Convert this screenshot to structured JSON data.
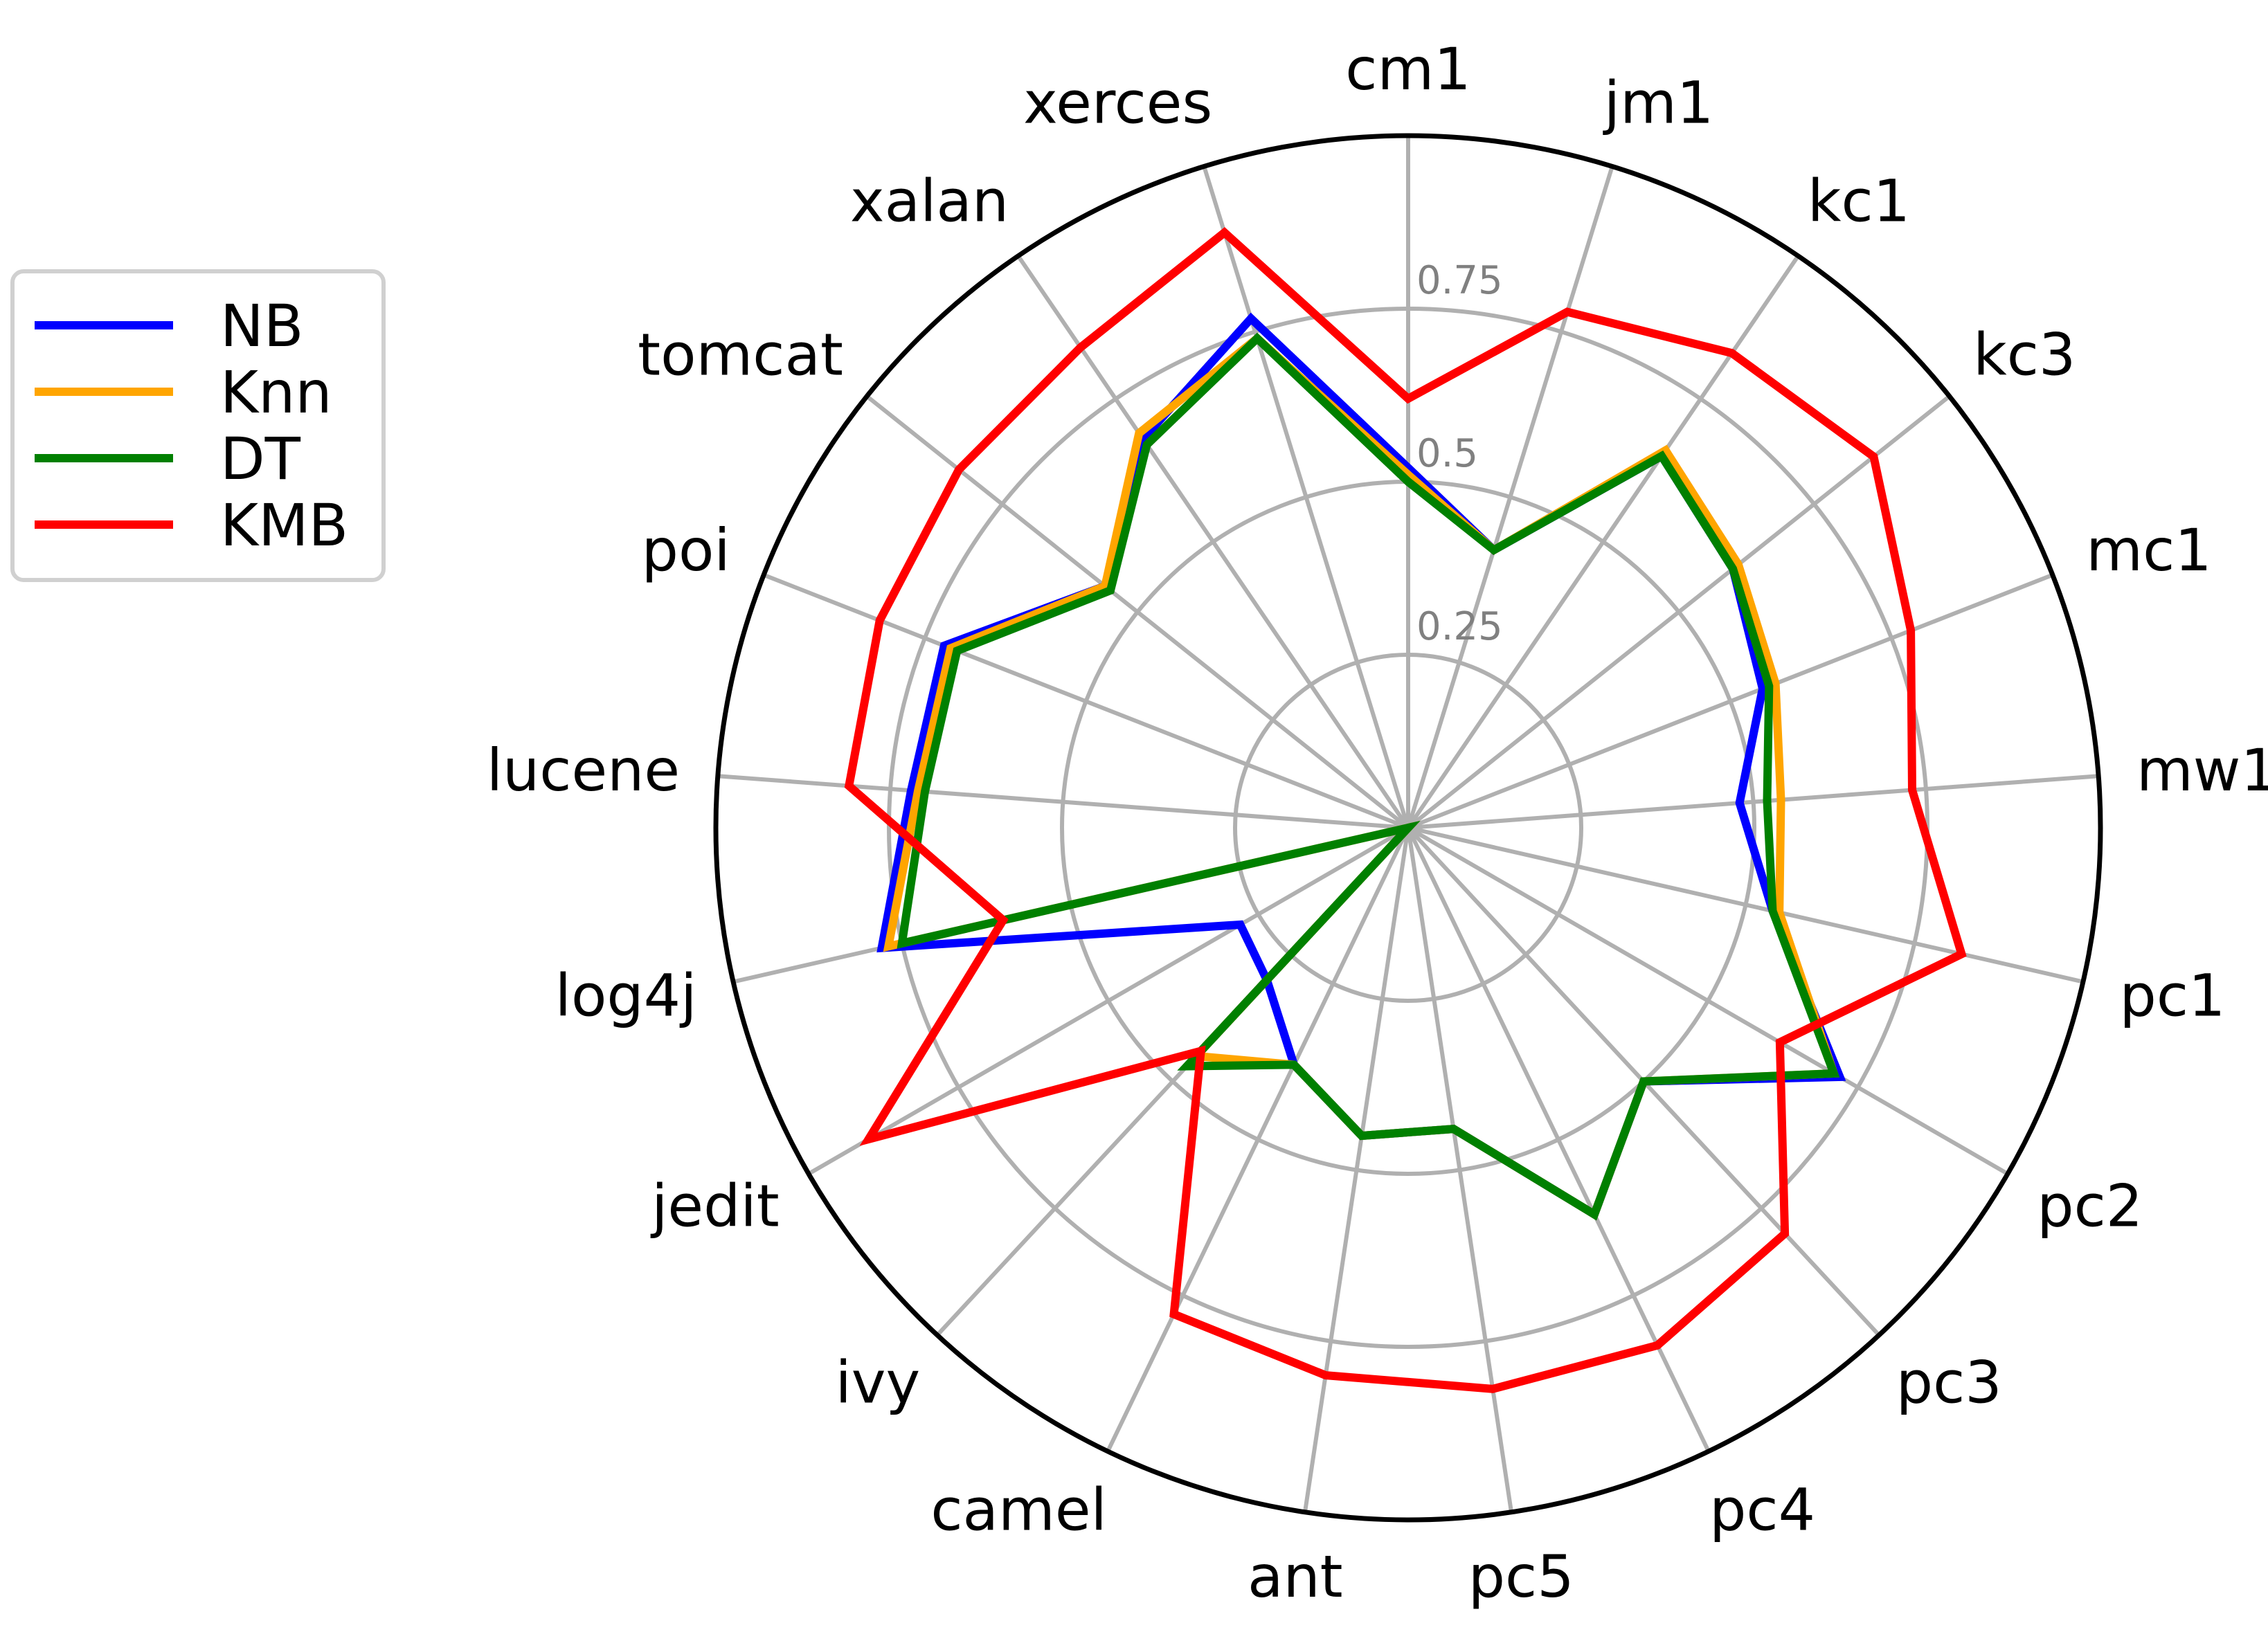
{
  "chart_data": {
    "type": "radar",
    "title": "",
    "categories": [
      "cm1",
      "jm1",
      "kc1",
      "kc3",
      "mc1",
      "mw1",
      "pc1",
      "pc2",
      "pc3",
      "pc4",
      "pc5",
      "ant",
      "camel",
      "ivy",
      "jedit",
      "log4j",
      "lucene",
      "poi",
      "tomcat",
      "xalan",
      "xerces"
    ],
    "rlim": [
      0,
      1
    ],
    "rticks": [
      0.25,
      0.5,
      0.75
    ],
    "rtick_labels": [
      "0.25",
      "0.5",
      "0.75"
    ],
    "grid": true,
    "legend_position": "left",
    "series": [
      {
        "name": "NB",
        "color": "#0000ff",
        "values": [
          0.52,
          0.42,
          0.65,
          0.6,
          0.55,
          0.48,
          0.54,
          0.72,
          0.5,
          0.62,
          0.44,
          0.45,
          0.38,
          0.3,
          0.28,
          0.78,
          0.72,
          0.72,
          0.56,
          0.68,
          0.77
        ]
      },
      {
        "name": "Knn",
        "color": "#ffa500",
        "values": [
          0.51,
          0.42,
          0.66,
          0.61,
          0.57,
          0.54,
          0.55,
          0.71,
          0.5,
          0.62,
          0.44,
          0.45,
          0.38,
          0.45,
          0.0,
          0.77,
          0.71,
          0.71,
          0.56,
          0.69,
          0.74
        ]
      },
      {
        "name": "DT",
        "color": "#008000",
        "values": [
          0.5,
          0.42,
          0.65,
          0.6,
          0.56,
          0.52,
          0.54,
          0.71,
          0.5,
          0.62,
          0.44,
          0.45,
          0.38,
          0.47,
          0.0,
          0.75,
          0.7,
          0.7,
          0.55,
          0.67,
          0.74
        ]
      },
      {
        "name": "KMB",
        "color": "#ff0000",
        "values": [
          0.62,
          0.78,
          0.83,
          0.86,
          0.78,
          0.73,
          0.82,
          0.62,
          0.8,
          0.83,
          0.82,
          0.8,
          0.78,
          0.44,
          0.9,
          0.6,
          0.81,
          0.82,
          0.83,
          0.84,
          0.9
        ]
      }
    ]
  }
}
